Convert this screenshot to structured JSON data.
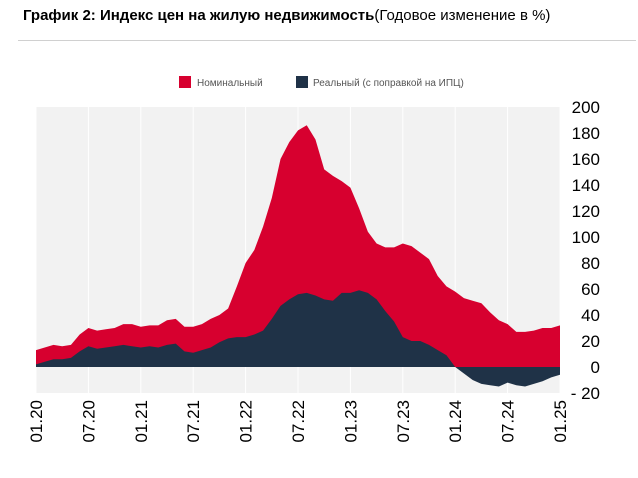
{
  "title": {
    "bold": "График 2: Индекс цен на жилую недвижимость",
    "normal": "(Годовое изменение в %)"
  },
  "colors": {
    "nominal": "#d7002f",
    "real": "#1f3247",
    "grid": "#d9d9d9",
    "plot_bg": "#f2f2f2"
  },
  "chart_data": {
    "type": "area",
    "title": "График 2: Индекс цен на жилую недвижимость (Годовое изменение в %)",
    "xlabel": "",
    "ylabel": "",
    "ylim": [
      -20,
      200
    ],
    "yticks": [
      -20,
      0,
      20,
      40,
      60,
      80,
      100,
      120,
      140,
      160,
      180,
      200
    ],
    "ytick_labels": [
      "- 20",
      "0",
      "20",
      "40",
      "60",
      "80",
      "100",
      "120",
      "140",
      "160",
      "180",
      "200"
    ],
    "x_tick_labels": [
      "01.20",
      "07.20",
      "01.21",
      "07.21",
      "01.22",
      "07.22",
      "01.23",
      "07.23",
      "01.24",
      "07.24",
      "01.25"
    ],
    "x": [
      "01.20",
      "02.20",
      "03.20",
      "04.20",
      "05.20",
      "06.20",
      "07.20",
      "08.20",
      "09.20",
      "10.20",
      "11.20",
      "12.20",
      "01.21",
      "02.21",
      "03.21",
      "04.21",
      "05.21",
      "06.21",
      "07.21",
      "08.21",
      "09.21",
      "10.21",
      "11.21",
      "12.21",
      "01.22",
      "02.22",
      "03.22",
      "04.22",
      "05.22",
      "06.22",
      "07.22",
      "08.22",
      "09.22",
      "10.22",
      "11.22",
      "12.22",
      "01.23",
      "02.23",
      "03.23",
      "04.23",
      "05.23",
      "06.23",
      "07.23",
      "08.23",
      "09.23",
      "10.23",
      "11.23",
      "12.23",
      "01.24",
      "02.24",
      "03.24",
      "04.24",
      "05.24",
      "06.24",
      "07.24",
      "08.24",
      "09.24",
      "10.24",
      "11.24",
      "12.24",
      "01.25"
    ],
    "series": [
      {
        "name": "Номинальный",
        "values": [
          13,
          15,
          17,
          16,
          17,
          25,
          30,
          28,
          29,
          30,
          33,
          33,
          31,
          32,
          32,
          36,
          37,
          31,
          31,
          33,
          37,
          40,
          45,
          62,
          80,
          90,
          108,
          130,
          160,
          173,
          182,
          186,
          175,
          152,
          147,
          143,
          138,
          122,
          104,
          95,
          92,
          92,
          95,
          93,
          88,
          83,
          70,
          62,
          58,
          53,
          51,
          49,
          42,
          36,
          33,
          27,
          27,
          28,
          30,
          30,
          32
        ]
      },
      {
        "name": "Реальный (с поправкой на ИПЦ)",
        "values": [
          2,
          4,
          6,
          6,
          7,
          12,
          16,
          14,
          15,
          16,
          17,
          16,
          15,
          16,
          15,
          17,
          18,
          12,
          11,
          13,
          15,
          19,
          22,
          23,
          23,
          25,
          28,
          37,
          47,
          52,
          56,
          57,
          55,
          52,
          51,
          57,
          57,
          59,
          57,
          52,
          43,
          35,
          23,
          20,
          20,
          17,
          13,
          9,
          0,
          -5,
          -10,
          -13,
          -14,
          -15,
          -12,
          -14,
          -15,
          -13,
          -11,
          -8,
          -6
        ]
      }
    ],
    "legend": [
      {
        "label": "Номинальный",
        "color": "#d7002f"
      },
      {
        "label": "Реальный (с поправкой на ИПЦ)",
        "color": "#1f3247"
      }
    ],
    "legend_position": "top-center",
    "grid": "vertical"
  }
}
